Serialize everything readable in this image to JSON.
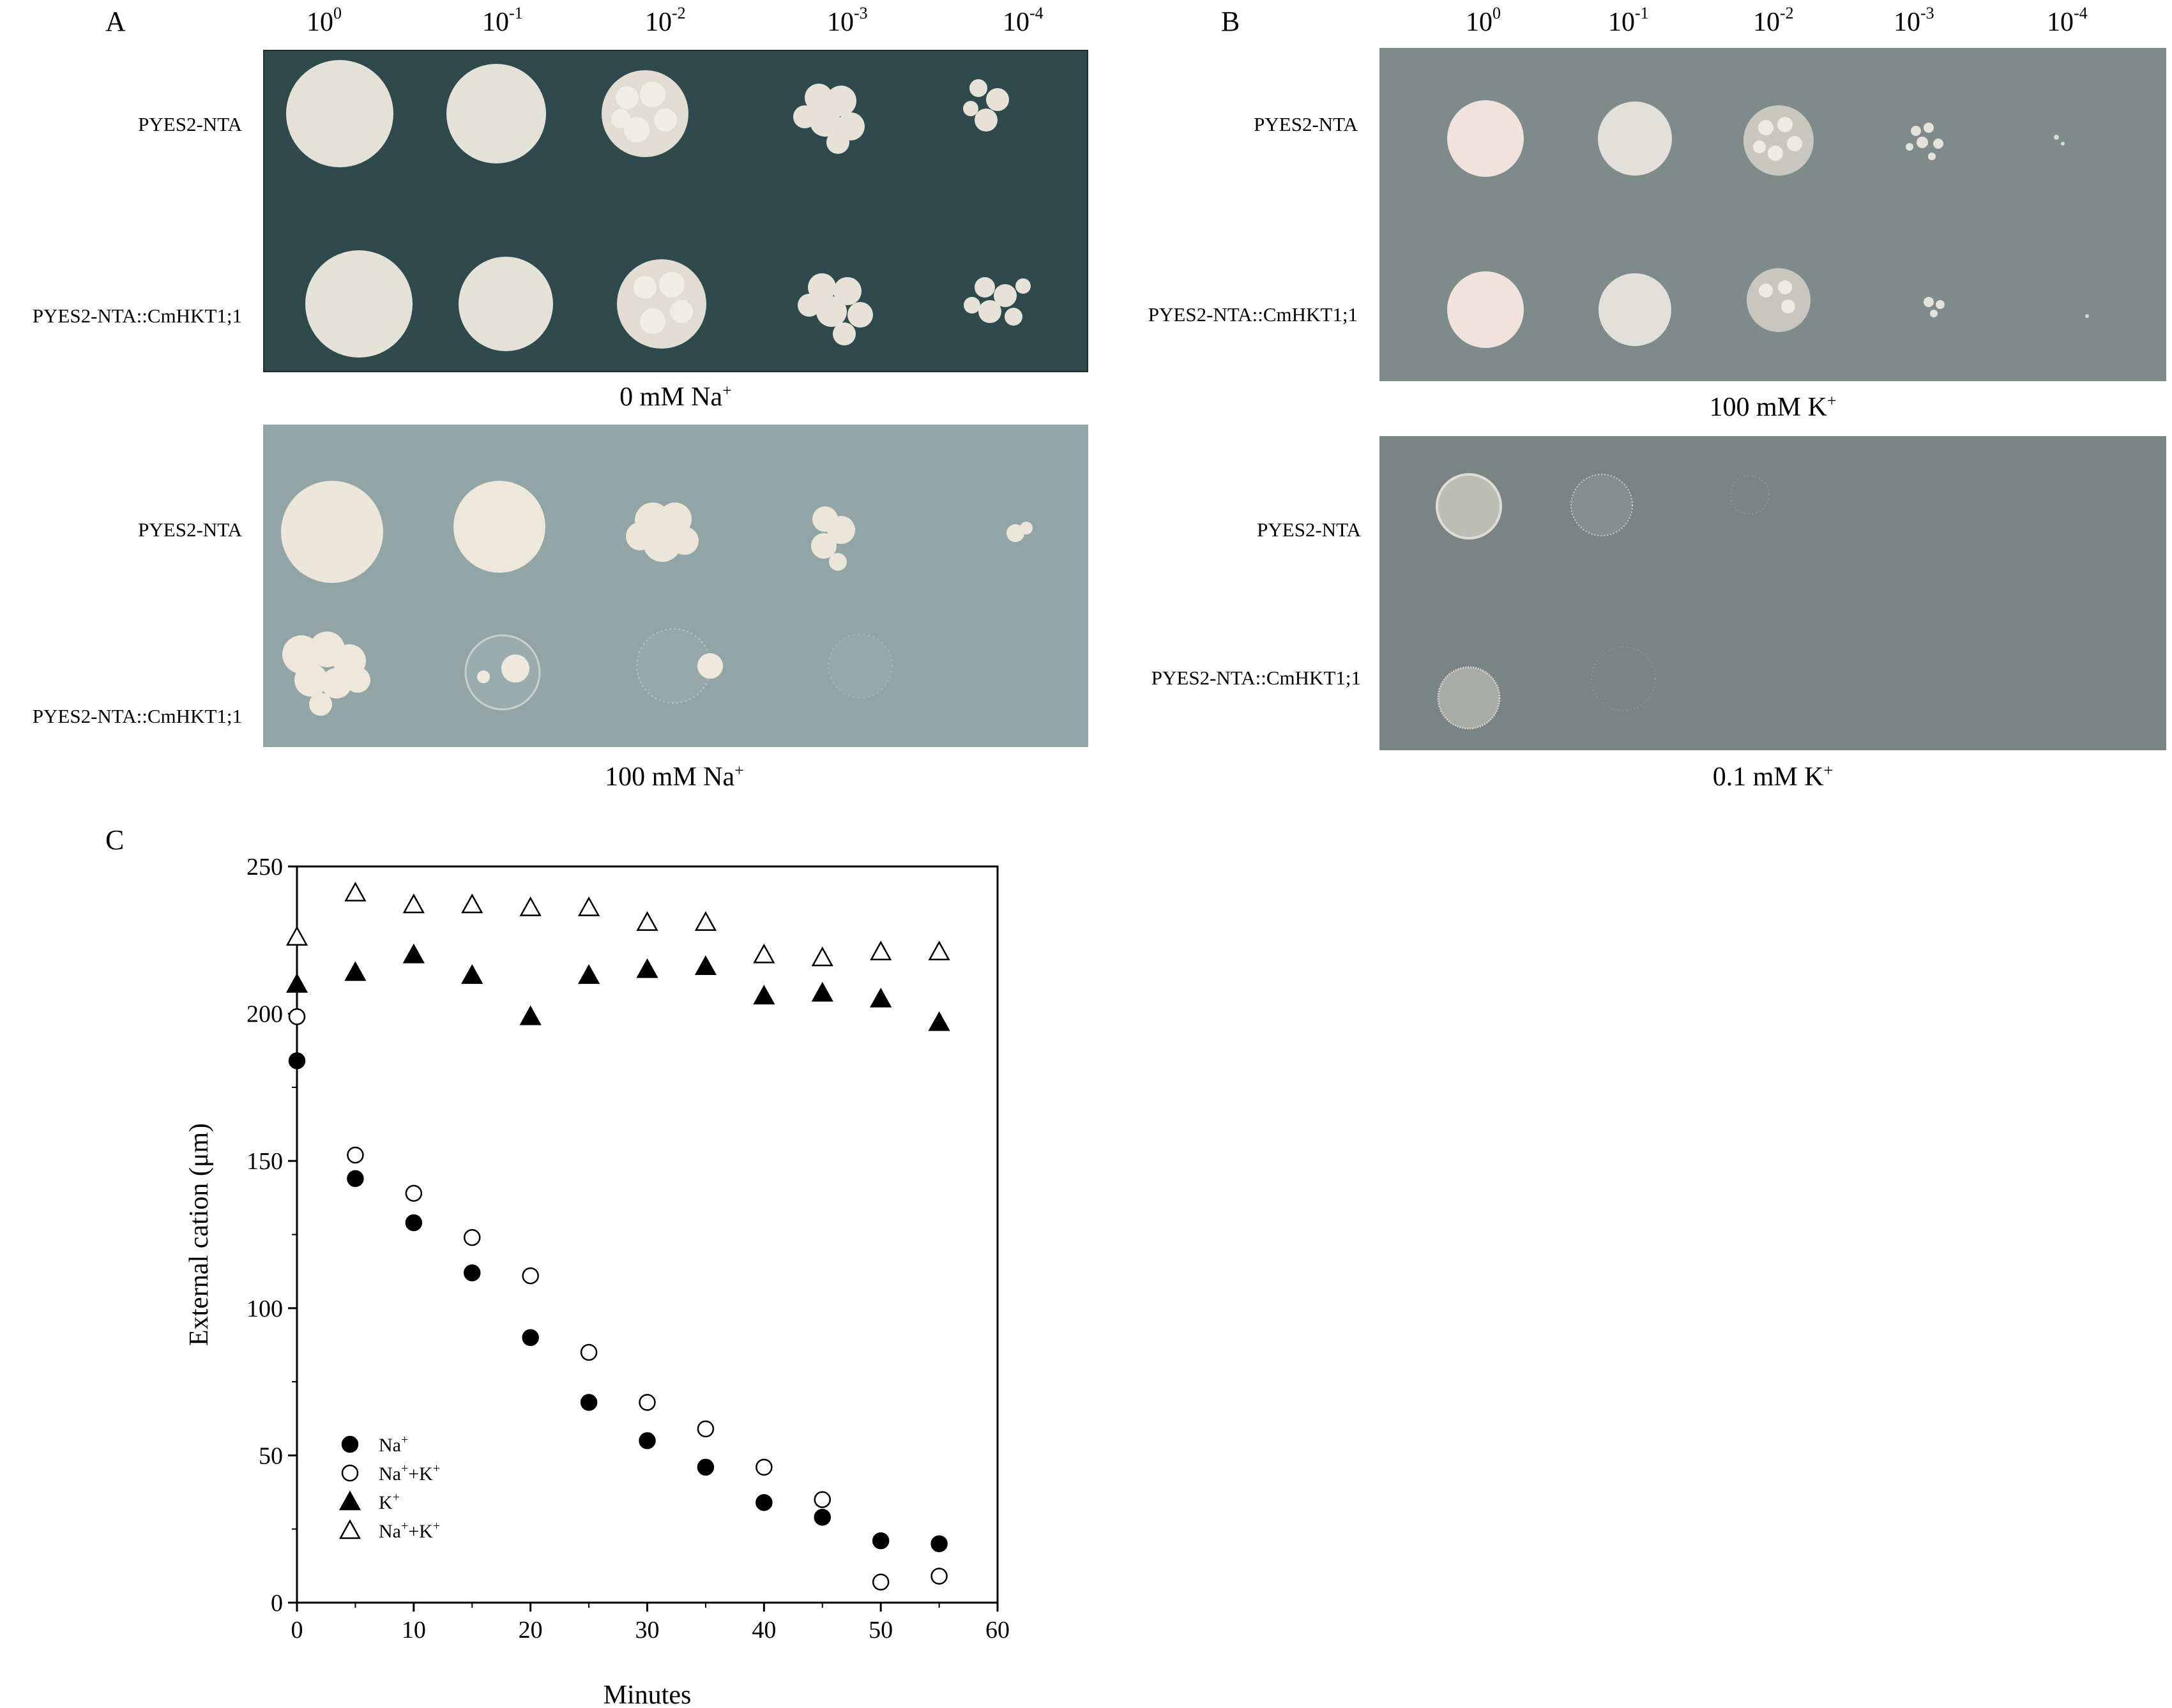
{
  "panels": {
    "A": {
      "letter": "A",
      "dilutions": [
        {
          "b": "10",
          "e": "0"
        },
        {
          "b": "10",
          "e": "-1"
        },
        {
          "b": "10",
          "e": "-2"
        },
        {
          "b": "10",
          "e": "-3"
        },
        {
          "b": "10",
          "e": "-4"
        }
      ],
      "plate_top": {
        "rows": [
          "PYES2-NTA",
          "PYES2-NTA::CmHKT1;1"
        ],
        "condition": {
          "text": "0 mM Na",
          "sup": "+"
        }
      },
      "plate_bottom": {
        "rows": [
          "PYES2-NTA",
          "PYES2-NTA::CmHKT1;1"
        ],
        "condition": {
          "text": "100 mM Na",
          "sup": "+"
        }
      }
    },
    "B": {
      "letter": "B",
      "dilutions": [
        {
          "b": "10",
          "e": "0"
        },
        {
          "b": "10",
          "e": "-1"
        },
        {
          "b": "10",
          "e": "-2"
        },
        {
          "b": "10",
          "e": "-3"
        },
        {
          "b": "10",
          "e": "-4"
        }
      ],
      "plate_top": {
        "rows": [
          "PYES2-NTA",
          "PYES2-NTA::CmHKT1;1"
        ],
        "condition": {
          "text": "100 mM K",
          "sup": "+"
        }
      },
      "plate_bottom": {
        "rows": [
          "PYES2-NTA",
          "PYES2-NTA::CmHKT1;1"
        ],
        "condition": {
          "text": "0.1 mM K",
          "sup": "+"
        }
      }
    },
    "C": {
      "letter": "C"
    }
  },
  "colors": {
    "plate_A_top": "#2e4a4c",
    "plate_A_bottom": "#8d9fa0",
    "plate_B_top": "#7f8a8b",
    "plate_B_bottom": "#7a8485",
    "colony": "#e6e2d8"
  },
  "chart_data": {
    "type": "scatter",
    "xlabel": "Minutes",
    "ylabel": "External cation (μm)",
    "xlim": [
      0,
      60
    ],
    "ylim": [
      0,
      250
    ],
    "xticks": [
      0,
      10,
      20,
      30,
      40,
      50,
      60
    ],
    "yticks": [
      0,
      50,
      100,
      150,
      200,
      250
    ],
    "legend_position": "lower-left",
    "series": [
      {
        "name": "Na+",
        "legend_label": "Na",
        "legend_sup1": "+",
        "legend_mid": "",
        "legend_sup2": "",
        "marker": "filled-circle",
        "x": [
          0,
          5,
          10,
          15,
          20,
          25,
          30,
          35,
          40,
          45,
          50,
          55
        ],
        "y": [
          184,
          144,
          129,
          112,
          90,
          68,
          55,
          46,
          34,
          29,
          21,
          20
        ]
      },
      {
        "name": "Na+ +K+",
        "legend_label": "Na",
        "legend_sup1": "+",
        "legend_mid": "+K",
        "legend_sup2": "+",
        "marker": "open-circle",
        "x": [
          0,
          5,
          10,
          15,
          20,
          25,
          30,
          35,
          40,
          45,
          50,
          55
        ],
        "y": [
          199,
          152,
          139,
          124,
          111,
          85,
          68,
          59,
          46,
          35,
          7,
          9
        ]
      },
      {
        "name": "K+",
        "legend_label": "K",
        "legend_sup1": "+",
        "legend_mid": "",
        "legend_sup2": "",
        "marker": "filled-triangle",
        "x": [
          0,
          5,
          10,
          15,
          20,
          25,
          30,
          35,
          40,
          45,
          50,
          55
        ],
        "y": [
          210,
          214,
          220,
          213,
          199,
          213,
          215,
          216,
          206,
          207,
          205,
          197
        ]
      },
      {
        "name": "Na+ +K+ (K)",
        "legend_label": "Na",
        "legend_sup1": "+",
        "legend_mid": "+K",
        "legend_sup2": "+",
        "marker": "open-triangle",
        "x": [
          0,
          5,
          10,
          15,
          20,
          25,
          30,
          35,
          40,
          45,
          50,
          55
        ],
        "y": [
          226,
          241,
          237,
          237,
          236,
          236,
          231,
          231,
          220,
          219,
          221,
          221
        ]
      }
    ]
  }
}
